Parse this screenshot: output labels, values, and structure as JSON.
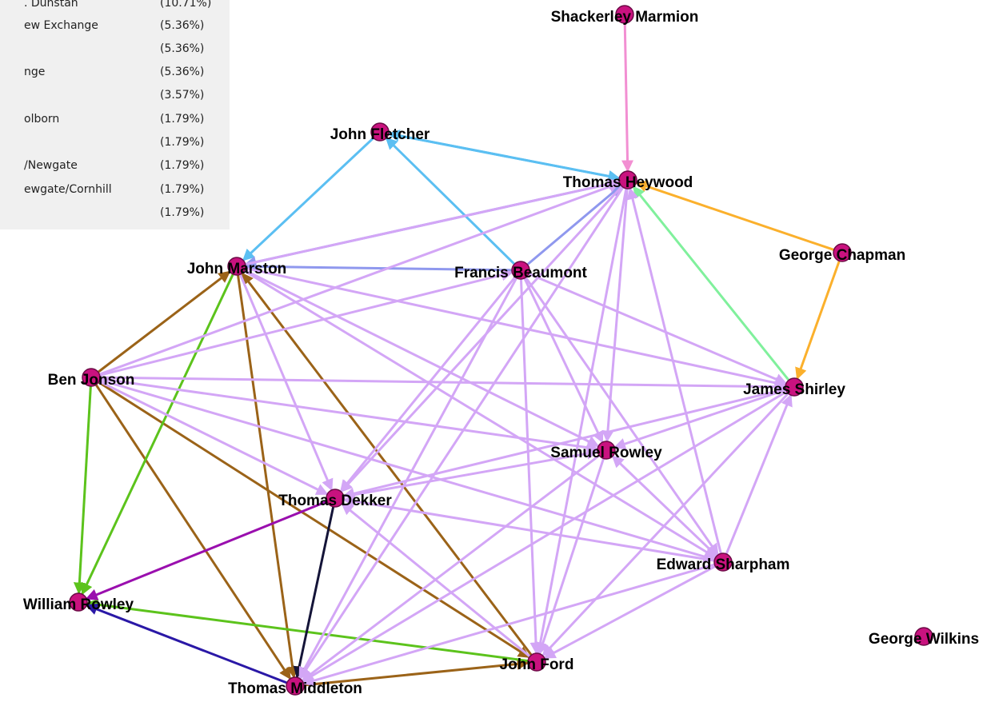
{
  "panel": {
    "rows": [
      {
        "label": ". Dunstan",
        "share": "(10.71%)"
      },
      {
        "label": "ew Exchange",
        "share": "(5.36%)"
      },
      {
        "share": "(5.36%)"
      },
      {
        "label": "nge",
        "share": "(5.36%)"
      },
      {
        "share": "(3.57%)"
      },
      {
        "label": "olborn",
        "share": "(1.79%)"
      },
      {
        "share": "(1.79%)"
      },
      {
        "label": "/Newgate",
        "share": "(1.79%)"
      },
      {
        "label": "ewgate/Cornhill",
        "share": "(1.79%)"
      },
      {
        "share": "(1.79%)"
      }
    ]
  },
  "nodes": [
    {
      "label": "Shackerley Marmion"
    },
    {
      "label": "John Fletcher"
    },
    {
      "label": "Thomas Heywood"
    },
    {
      "label": "George Chapman"
    },
    {
      "label": "John Marston"
    },
    {
      "label": "Francis Beaumont"
    },
    {
      "label": "Ben Jonson"
    },
    {
      "label": "James Shirley"
    },
    {
      "label": "Samuel Rowley"
    },
    {
      "label": "Thomas Dekker"
    },
    {
      "label": "Edward Sharpham"
    },
    {
      "label": "William Rowley"
    },
    {
      "label": "George Wilkins"
    },
    {
      "label": "John Ford"
    },
    {
      "label": "Thomas Middleton"
    }
  ]
}
